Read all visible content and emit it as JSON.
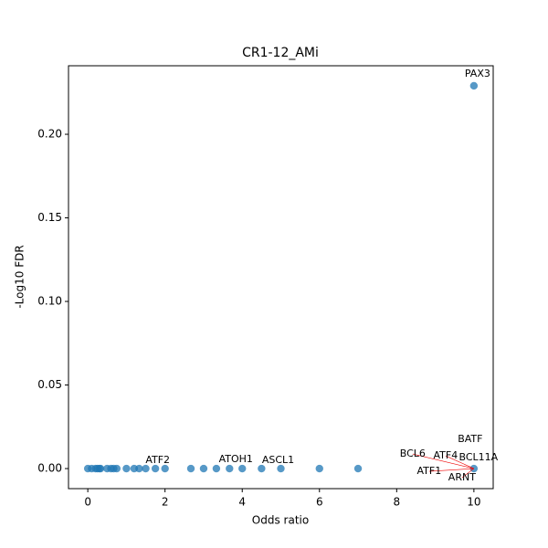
{
  "chart_data": {
    "type": "scatter",
    "title": "CR1-12_AMi",
    "x_label": "Odds ratio",
    "y_label": "-Log10 FDR",
    "xlim": [
      -0.5,
      10.5
    ],
    "ylim": [
      -0.012,
      0.241
    ],
    "xticks": [
      0,
      2,
      4,
      6,
      8,
      10
    ],
    "yticks": [
      {
        "value": 0,
        "label": "0.00"
      },
      {
        "value": 0.05,
        "label": "0.05"
      },
      {
        "value": 0.1,
        "label": "0.10"
      },
      {
        "value": 0.15,
        "label": "0.15"
      },
      {
        "value": 0.2,
        "label": "0.20"
      }
    ],
    "grid": false,
    "series": [
      {
        "color": "#1f77b4",
        "x": [
          0,
          0.1,
          0.2,
          0.25,
          0.3,
          0.33,
          0.5,
          0.6,
          0.67,
          0.75,
          1,
          1.2,
          1.33,
          1.5,
          1.75,
          2,
          2.67,
          3,
          3.33,
          3.67,
          4,
          4.5,
          5,
          6,
          7,
          10,
          10
        ],
        "values": [
          0,
          0,
          0,
          0,
          0,
          0,
          0,
          0,
          0,
          0,
          0,
          0,
          0,
          0,
          0,
          0,
          0,
          0,
          0,
          0,
          0,
          0,
          0,
          0,
          0,
          0,
          0.229
        ]
      }
    ],
    "annotations": [
      {
        "text": "PAX3",
        "x": 10,
        "y": 0.229
      },
      {
        "text": "ATF2",
        "x": 2,
        "y": 0
      },
      {
        "text": "ATOH1",
        "x": 4,
        "y": 0
      },
      {
        "text": "ASCL1",
        "x": 5,
        "y": 0
      },
      {
        "text": "BATF",
        "x": 10,
        "y": 0
      },
      {
        "text": "BCL6",
        "x": 10,
        "y": 0
      },
      {
        "text": "ATF4",
        "x": 10,
        "y": 0
      },
      {
        "text": "BCL11A",
        "x": 10,
        "y": 0
      },
      {
        "text": "ATF1",
        "x": 10,
        "y": 0
      },
      {
        "text": "ARNT",
        "x": 10,
        "y": 0
      }
    ]
  }
}
